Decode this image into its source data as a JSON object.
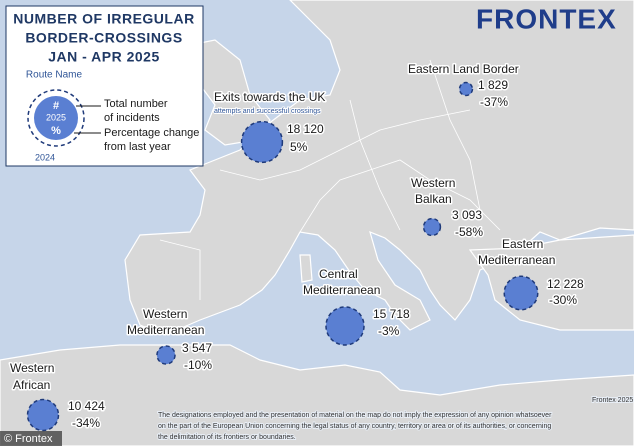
{
  "legend": {
    "title": [
      "NUMBER OF IRREGULAR",
      "BORDER-CROSSINGS",
      "JAN - APR 2025"
    ],
    "route_name": "Route Name",
    "symbol": "#",
    "year_current": "2025",
    "percent": "%",
    "year_previous": "2024",
    "incidents_note": [
      "Total number",
      "of incidents"
    ],
    "change_note": [
      "Percentage change",
      "from last year"
    ]
  },
  "logo": "FRONTEX",
  "routes": [
    {
      "name": [
        "Exits towards the UK"
      ],
      "subtitle": "attempts and successful crossings",
      "incidents": {
        "value": 18120,
        "label": "18 120"
      },
      "change": {
        "value": 5,
        "label": "5%"
      }
    },
    {
      "name": [
        "Eastern Land Border"
      ],
      "incidents": {
        "value": 1829,
        "label": "1 829"
      },
      "change": {
        "value": -37,
        "label": "-37%"
      }
    },
    {
      "name": [
        "Western",
        "Balkan"
      ],
      "incidents": {
        "value": 3093,
        "label": "3 093"
      },
      "change": {
        "value": -58,
        "label": "-58%"
      }
    },
    {
      "name": [
        "Eastern",
        "Mediterranean"
      ],
      "incidents": {
        "value": 12228,
        "label": "12 228"
      },
      "change": {
        "value": -30,
        "label": "-30%"
      }
    },
    {
      "name": [
        "Central",
        "Mediterranean"
      ],
      "incidents": {
        "value": 15718,
        "label": "15 718"
      },
      "change": {
        "value": -3,
        "label": "-3%"
      }
    },
    {
      "name": [
        "Western",
        "Mediterranean"
      ],
      "incidents": {
        "value": 3547,
        "label": "3 547"
      },
      "change": {
        "value": -10,
        "label": "-10%"
      }
    },
    {
      "name": [
        "Western",
        "African"
      ],
      "incidents": {
        "value": 10424,
        "label": "10 424"
      },
      "change": {
        "value": -34,
        "label": "-34%"
      }
    }
  ],
  "disclaimer": [
    "The designations employed and the presentation of material on the map do not imply the expression of any opinion whatsoever",
    "on the part of the European Union concerning the legal status of any country, territory or area or of its authorities, or concerning",
    "the delimitation of its frontiers or boundaries."
  ],
  "copyright": "© Frontex",
  "source": "Frontex 2025"
}
